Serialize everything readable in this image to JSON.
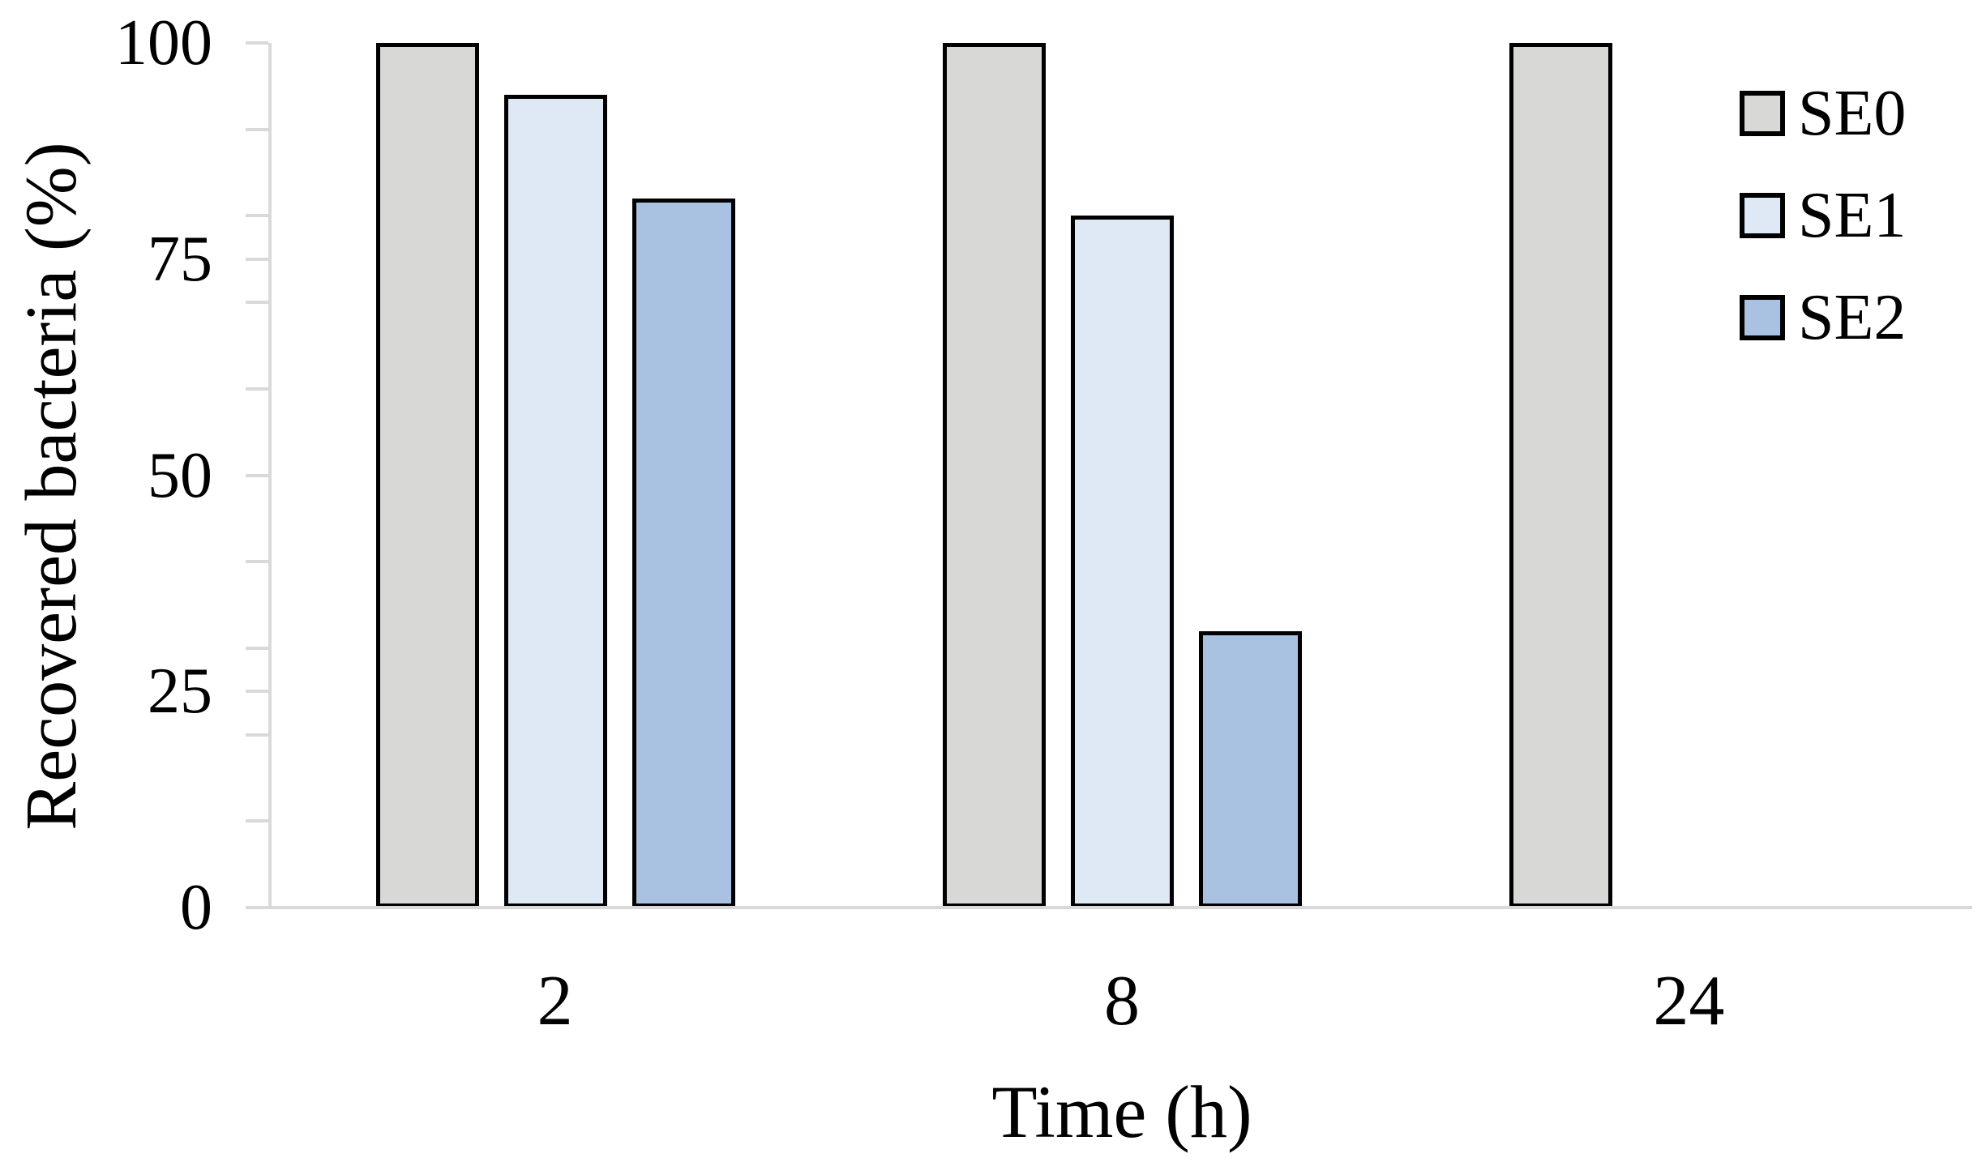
{
  "figure": {
    "background": "#ffffff"
  },
  "chart_data": {
    "type": "bar",
    "title": "",
    "xlabel": "Time (h)",
    "ylabel": "Recovered bacteria (%)",
    "categories": [
      "2",
      "8",
      "24"
    ],
    "series": [
      {
        "name": "SE0",
        "color": "#d8d8d6",
        "values": [
          100,
          100,
          100
        ]
      },
      {
        "name": "SE1",
        "color": "#dfe8f5",
        "values": [
          94,
          80,
          0
        ]
      },
      {
        "name": "SE2",
        "color": "#a9c2e2",
        "values": [
          82,
          32,
          0
        ]
      }
    ],
    "ylim": [
      0,
      100
    ],
    "yticks_major": [
      0,
      25,
      50,
      75,
      100
    ],
    "yticks_minor": [
      10,
      20,
      30,
      40,
      60,
      70,
      80,
      90
    ],
    "grid": false,
    "legend_position": "top-right",
    "axis_color": "#d9d9d9",
    "bar_border_color": "#000000",
    "text_color": "#000000"
  }
}
